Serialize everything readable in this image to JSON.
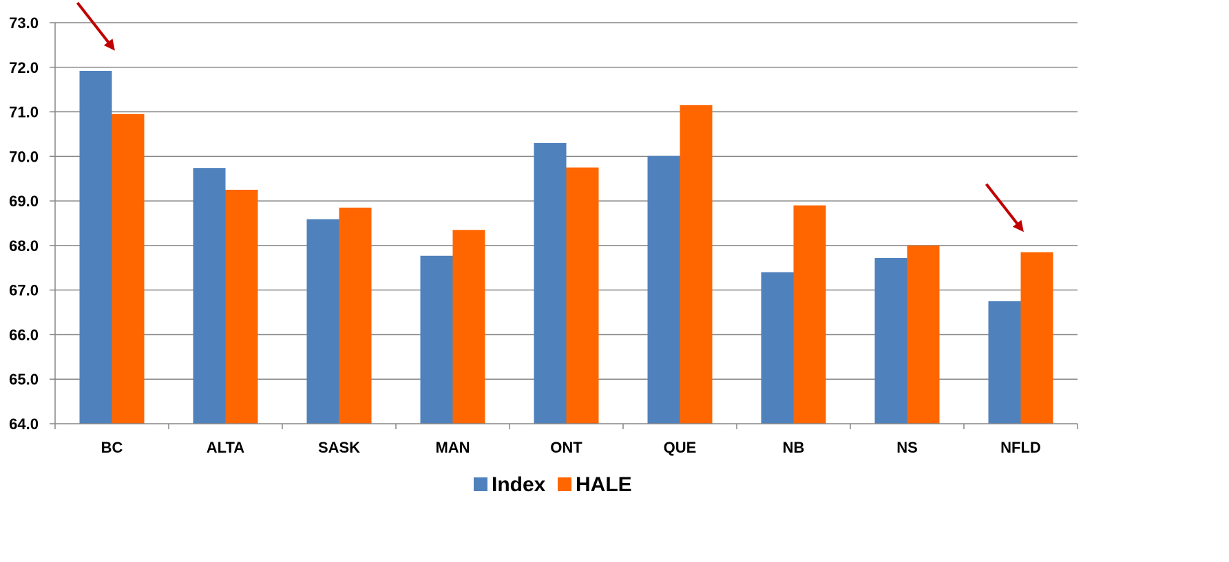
{
  "chart_data": {
    "type": "bar",
    "categories": [
      "BC",
      "ALTA",
      "SASK",
      "MAN",
      "ONT",
      "QUE",
      "NB",
      "NS",
      "NFLD"
    ],
    "series": [
      {
        "name": "Index",
        "color": "#4F81BD",
        "values": [
          71.92,
          69.74,
          68.59,
          67.77,
          70.3,
          70.01,
          67.4,
          67.72,
          66.75
        ]
      },
      {
        "name": "HALE",
        "color": "#FF6600",
        "values": [
          70.95,
          69.25,
          68.85,
          68.35,
          69.75,
          71.15,
          68.9,
          68.0,
          67.85
        ]
      }
    ],
    "ylim": [
      64.0,
      73.0
    ],
    "yticks": [
      "64.0",
      "65.0",
      "66.0",
      "67.0",
      "68.0",
      "69.0",
      "70.0",
      "71.0",
      "72.0",
      "73.0"
    ],
    "grid": true,
    "legend_position": "bottom",
    "annotations": [
      {
        "type": "arrow",
        "points_to": "BC",
        "color": "#C00000"
      },
      {
        "type": "arrow",
        "points_to": "NFLD",
        "color": "#C00000"
      }
    ]
  }
}
